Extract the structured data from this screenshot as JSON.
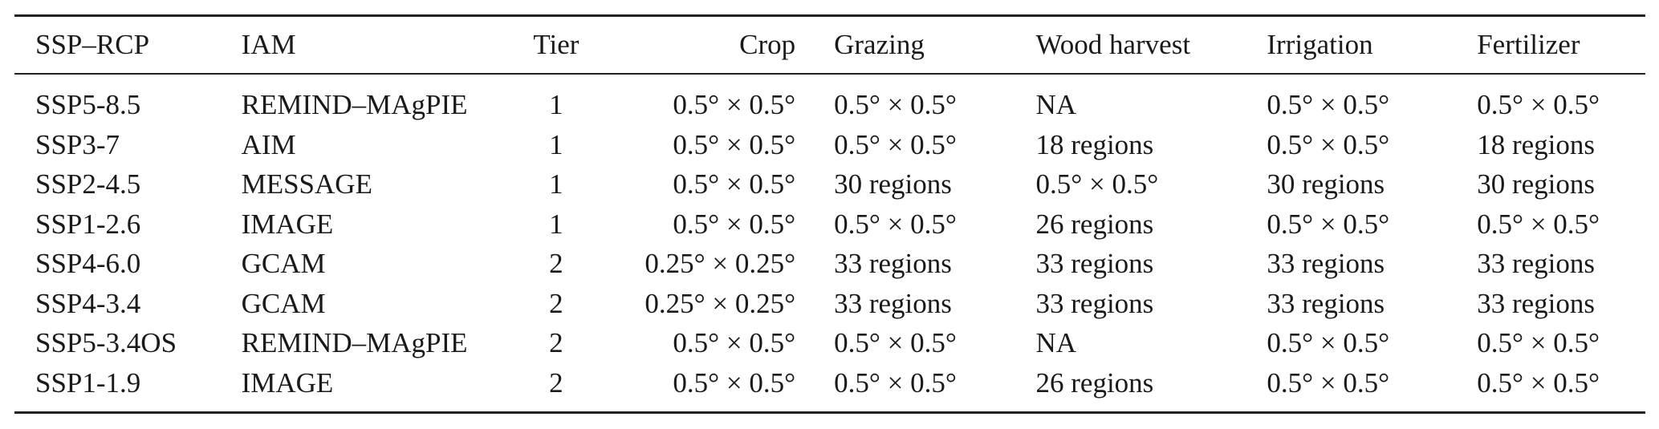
{
  "table": {
    "headers": [
      "SSP–RCP",
      "IAM",
      "Tier",
      "Crop",
      "Grazing",
      "Wood harvest",
      "Irrigation",
      "Fertilizer"
    ],
    "rows": [
      [
        "SSP5-8.5",
        "REMIND–MAgPIE",
        "1",
        "0.5° × 0.5°",
        "0.5° × 0.5°",
        "NA",
        "0.5° × 0.5°",
        "0.5° × 0.5°"
      ],
      [
        "SSP3-7",
        "AIM",
        "1",
        "0.5° × 0.5°",
        "0.5° × 0.5°",
        "18 regions",
        "0.5° × 0.5°",
        "18 regions"
      ],
      [
        "SSP2-4.5",
        "MESSAGE",
        "1",
        "0.5° × 0.5°",
        "30 regions",
        "0.5° × 0.5°",
        "30 regions",
        "30 regions"
      ],
      [
        "SSP1-2.6",
        "IMAGE",
        "1",
        "0.5° × 0.5°",
        "0.5° × 0.5°",
        "26 regions",
        "0.5° × 0.5°",
        "0.5° × 0.5°"
      ],
      [
        "SSP4-6.0",
        "GCAM",
        "2",
        "0.25° × 0.25°",
        "33 regions",
        "33 regions",
        "33 regions",
        "33 regions"
      ],
      [
        "SSP4-3.4",
        "GCAM",
        "2",
        "0.25° × 0.25°",
        "33 regions",
        "33 regions",
        "33 regions",
        "33 regions"
      ],
      [
        "SSP5-3.4OS",
        "REMIND–MAgPIE",
        "2",
        "0.5° × 0.5°",
        "0.5° × 0.5°",
        "NA",
        "0.5° × 0.5°",
        "0.5° × 0.5°"
      ],
      [
        "SSP1-1.9",
        "IMAGE",
        "2",
        "0.5° × 0.5°",
        "0.5° × 0.5°",
        "26 regions",
        "0.5° × 0.5°",
        "0.5° × 0.5°"
      ]
    ]
  }
}
